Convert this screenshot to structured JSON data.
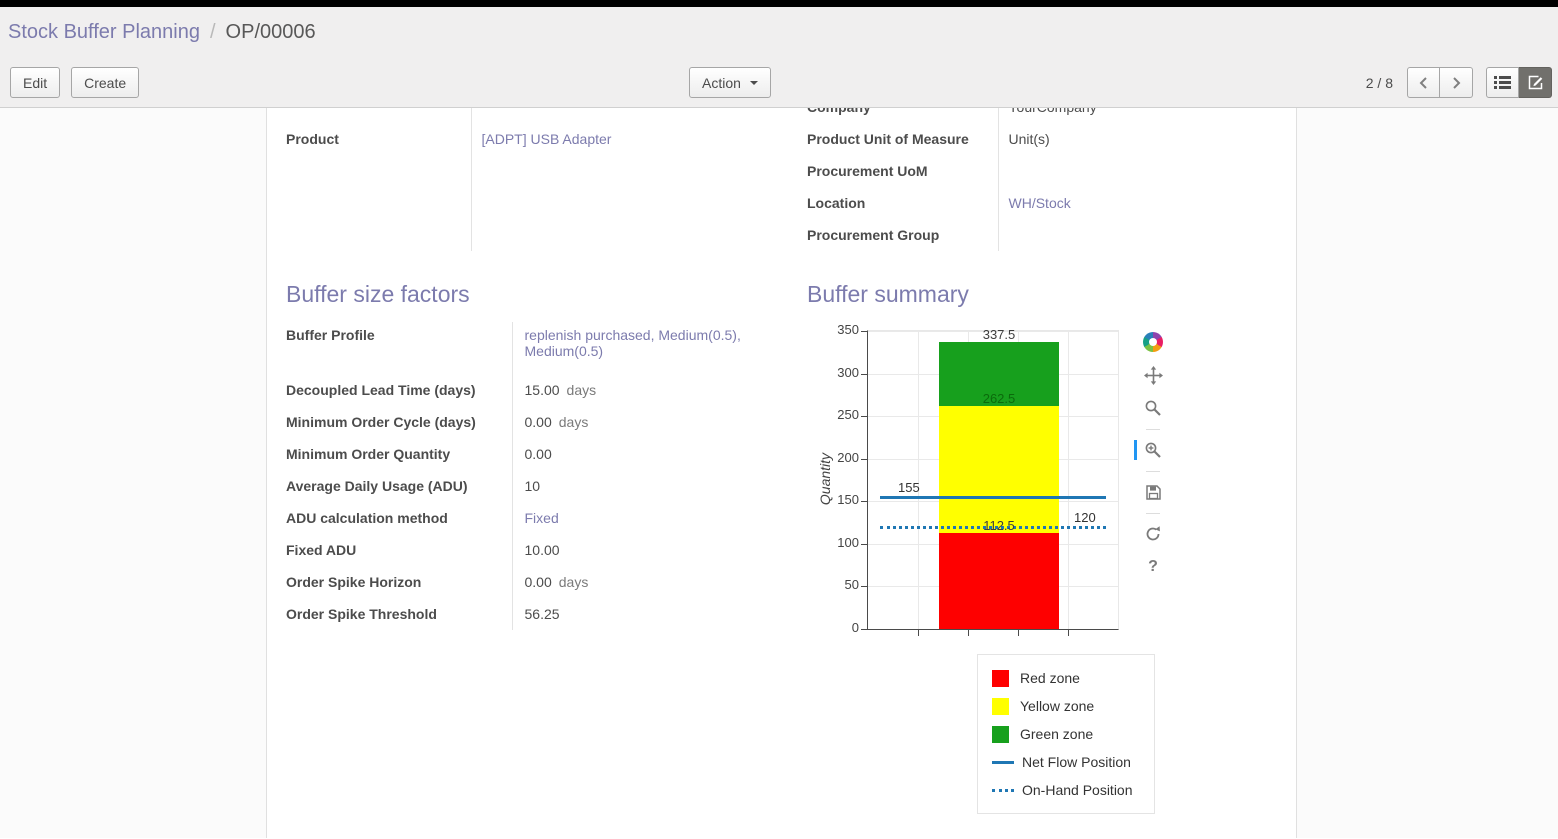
{
  "theme": {
    "accent": "#7c7bad",
    "topbar_color": "#000000",
    "active_tool_color": "#2196f3"
  },
  "breadcrumb": {
    "parent": "Stock Buffer Planning",
    "separator": "/",
    "current": "OP/00006"
  },
  "control_panel": {
    "edit_label": "Edit",
    "create_label": "Create",
    "action_label": "Action",
    "pager_text": "2 / 8"
  },
  "icons": {
    "action_caret": "caret-down-icon",
    "pager_prev": "chevron-left-icon",
    "pager_next": "chevron-right-icon",
    "view_switch_list": "list-view-icon",
    "view_switch_form": "form-view-icon",
    "chart_toolbar": [
      "bokeh-logo",
      "pan-tool-icon",
      "box-zoom-tool-icon",
      "wheel-zoom-tool-icon",
      "save-tool-icon",
      "reset-tool-icon",
      "help-tool-icon"
    ],
    "active_tool": "wheel-zoom-tool-icon"
  },
  "form": {
    "clipped_row": {
      "label": "Company",
      "value": "YourCompany"
    },
    "left_fields": [
      {
        "label": "Product",
        "value": "[ADPT] USB Adapter",
        "is_link": true
      }
    ],
    "right_fields": [
      {
        "label": "Product Unit of Measure",
        "value": "Unit(s)",
        "is_link": false
      },
      {
        "label": "Procurement UoM",
        "value": "",
        "is_link": false
      },
      {
        "label": "Location",
        "value": "WH/Stock",
        "is_link": true
      },
      {
        "label": "Procurement Group",
        "value": "",
        "is_link": false
      }
    ]
  },
  "factors": {
    "title": "Buffer size factors",
    "rows": [
      {
        "label": "Buffer Profile",
        "value": "replenish purchased, Medium(0.5), Medium(0.5)",
        "is_link": true
      },
      {
        "label": "Decoupled Lead Time (days)",
        "value": "15.00",
        "unit": "days"
      },
      {
        "label": "Minimum Order Cycle (days)",
        "value": "0.00",
        "unit": "days"
      },
      {
        "label": "Minimum Order Quantity",
        "value": "0.00"
      },
      {
        "label": "Average Daily Usage (ADU)",
        "value": "10"
      },
      {
        "label": "ADU calculation method",
        "value": "Fixed",
        "is_link": true
      },
      {
        "label": "Fixed ADU",
        "value": "10.00"
      },
      {
        "label": "Order Spike Horizon",
        "value": "0.00",
        "unit": "days"
      },
      {
        "label": "Order Spike Threshold",
        "value": "56.25"
      }
    ]
  },
  "summary": {
    "title": "Buffer summary"
  },
  "chart_data": {
    "type": "bar",
    "title": "",
    "xlabel": "",
    "ylabel": "Quantity",
    "ylim": [
      0,
      350
    ],
    "yticks": [
      0,
      50,
      100,
      150,
      200,
      250,
      300,
      350
    ],
    "grid": true,
    "zones": [
      {
        "name": "Red zone",
        "from": 0,
        "to": 112.5,
        "color": "#fe0000",
        "label": "112.5",
        "label_color": "#3d3d3d"
      },
      {
        "name": "Yellow zone",
        "from": 112.5,
        "to": 262.5,
        "color": "#ffff00",
        "label": "262.5",
        "label_color": "#0b6b0b"
      },
      {
        "name": "Green zone",
        "from": 262.5,
        "to": 337.5,
        "color": "#17a01d",
        "label": "337.5",
        "label_color": "#3d3d3d"
      }
    ],
    "lines": [
      {
        "name": "Net Flow Position",
        "value": 155,
        "style": "solid",
        "color": "#1f77b4",
        "label": "155",
        "label_side": "left"
      },
      {
        "name": "On-Hand Position",
        "value": 120,
        "style": "dotted",
        "color": "#1f77b4",
        "label": "120",
        "label_side": "right"
      }
    ],
    "legend_position": "bottom-right",
    "legend": [
      {
        "label": "Red zone",
        "swatch": "square",
        "color": "#fe0000"
      },
      {
        "label": "Yellow zone",
        "swatch": "square",
        "color": "#ffff00"
      },
      {
        "label": "Green zone",
        "swatch": "square",
        "color": "#17a01d"
      },
      {
        "label": "Net Flow Position",
        "swatch": "line",
        "color": "#1f77b4"
      },
      {
        "label": "On-Hand Position",
        "swatch": "dotted-line",
        "color": "#1f77b4"
      }
    ]
  }
}
